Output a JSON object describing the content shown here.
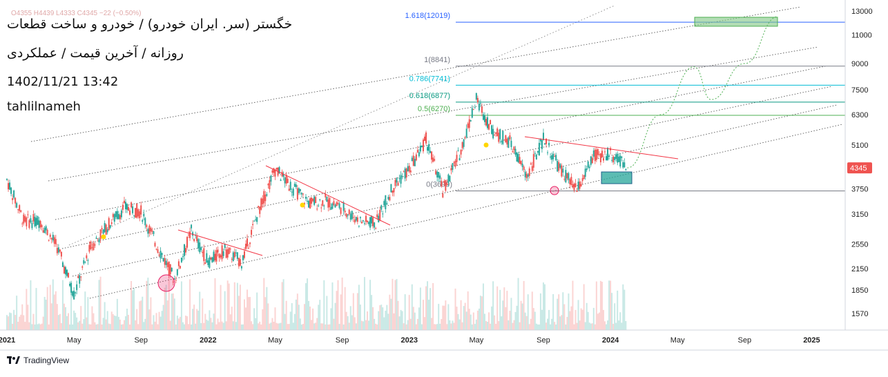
{
  "header": {
    "symbol_title": "خگستر (سر. ایران خودرو) / خودرو و ساخت قطعات",
    "subtitle": "روزانه / آخرین قیمت / عملکردی",
    "datetime": "1402/11/21 13:42",
    "author": "tahlilnameh",
    "ohlc_legend": "O4355  H4439  L4333  C4345  −22 (−0.50%)"
  },
  "brand": {
    "name": "TradingView",
    "logo_icon": "tradingview-logo-icon"
  },
  "colors": {
    "up": "#26a69a",
    "down": "#ef5350",
    "fib_1618": "#2962ff",
    "fib_1": "#787b86",
    "fib_0786": "#00bcd4",
    "fib_0618": "#089981",
    "fib_05": "#4caf50",
    "trendline": "#f23645",
    "target_box": "#81c784",
    "support_box": "#26a69a",
    "forecast": "#66bb6a"
  },
  "chart_data": {
    "type": "candlestick",
    "scale": "log",
    "x_axis": {
      "ticks": [
        "2021",
        "May",
        "Sep",
        "2022",
        "May",
        "Sep",
        "2023",
        "May",
        "Sep",
        "2024",
        "May",
        "Sep",
        "2025"
      ],
      "range": [
        "2021-01",
        "2025-03"
      ]
    },
    "y_axis": {
      "ticks": [
        13000,
        11000,
        9000,
        7500,
        6300,
        5100,
        3750,
        3150,
        2550,
        2150,
        1850,
        1570
      ],
      "range": [
        1400,
        13500
      ]
    },
    "last_price": 4345,
    "fibonacci_levels": [
      {
        "label": "1.618(12019)",
        "value": 12019
      },
      {
        "label": "1(8841)",
        "value": 8841
      },
      {
        "label": "0.786(7741)",
        "value": 7741
      },
      {
        "label": "0.618(6877)",
        "value": 6877
      },
      {
        "label": "0.5(6270)",
        "value": 6270
      },
      {
        "label": "0(3699)",
        "value": 3699
      }
    ],
    "price_path": [
      {
        "date": "2021-01",
        "close": 4000
      },
      {
        "date": "2021-02",
        "close": 3000
      },
      {
        "date": "2021-03",
        "close": 3000
      },
      {
        "date": "2021-04",
        "close": 2500
      },
      {
        "date": "2021-05",
        "close": 1800
      },
      {
        "date": "2021-06",
        "close": 2500
      },
      {
        "date": "2021-07",
        "close": 2900
      },
      {
        "date": "2021-08",
        "close": 3300
      },
      {
        "date": "2021-09",
        "close": 3200
      },
      {
        "date": "2021-10",
        "close": 2500
      },
      {
        "date": "2021-11",
        "close": 2000
      },
      {
        "date": "2021-12",
        "close": 2800
      },
      {
        "date": "2022-01",
        "close": 2250
      },
      {
        "date": "2022-02",
        "close": 2450
      },
      {
        "date": "2022-03",
        "close": 2250
      },
      {
        "date": "2022-04",
        "close": 3200
      },
      {
        "date": "2022-05",
        "close": 4300
      },
      {
        "date": "2022-06",
        "close": 3800
      },
      {
        "date": "2022-07",
        "close": 3400
      },
      {
        "date": "2022-08",
        "close": 3450
      },
      {
        "date": "2022-09",
        "close": 3300
      },
      {
        "date": "2022-10",
        "close": 3000
      },
      {
        "date": "2022-11",
        "close": 2950
      },
      {
        "date": "2022-12",
        "close": 3800
      },
      {
        "date": "2023-01",
        "close": 4300
      },
      {
        "date": "2023-02",
        "close": 5300
      },
      {
        "date": "2023-03",
        "close": 3700
      },
      {
        "date": "2023-04",
        "close": 4800
      },
      {
        "date": "2023-05",
        "close": 7000
      },
      {
        "date": "2023-06",
        "close": 5600
      },
      {
        "date": "2023-07",
        "close": 5200
      },
      {
        "date": "2023-08",
        "close": 4100
      },
      {
        "date": "2023-09",
        "close": 5300
      },
      {
        "date": "2023-10",
        "close": 4300
      },
      {
        "date": "2023-11",
        "close": 3700
      },
      {
        "date": "2023-12",
        "close": 4700
      },
      {
        "date": "2024-01",
        "close": 4800
      },
      {
        "date": "2024-02",
        "close": 4345
      }
    ],
    "forecast_path": [
      {
        "date": "2024-02",
        "value": 4345
      },
      {
        "date": "2024-04",
        "value": 6300
      },
      {
        "date": "2024-06",
        "value": 8800
      },
      {
        "date": "2024-07",
        "value": 7000
      },
      {
        "date": "2024-09",
        "value": 9000
      },
      {
        "date": "2024-11",
        "value": 12500
      }
    ],
    "grid": false,
    "volume_shown": true
  }
}
